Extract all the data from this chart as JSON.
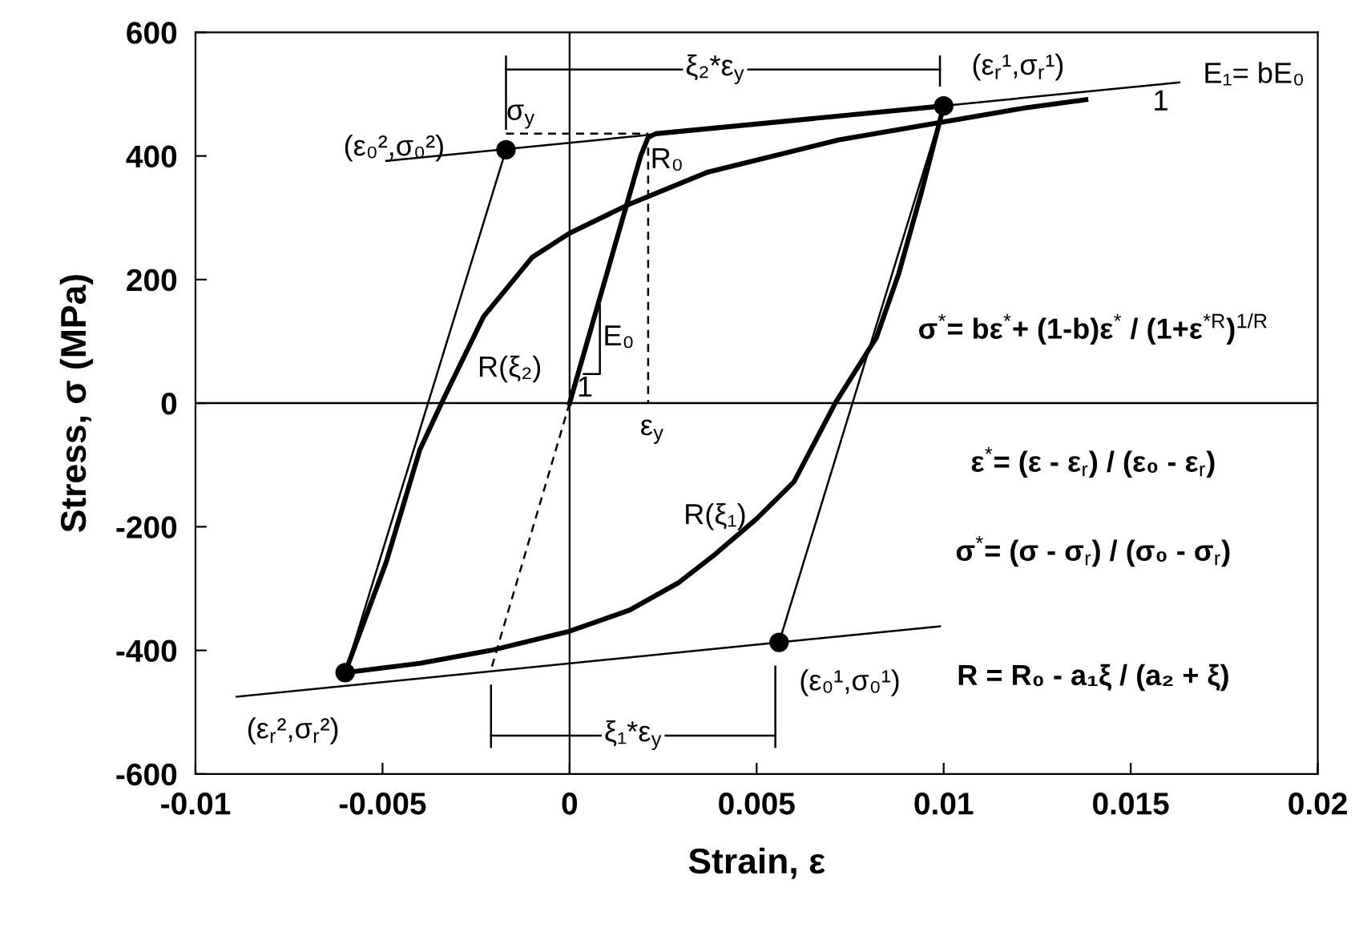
{
  "chart_data": {
    "type": "line",
    "xlabel": "Strain, ε",
    "ylabel": "Stress, σ (MPa)",
    "xlim": [
      -0.01,
      0.02
    ],
    "ylim": [
      -600,
      600
    ],
    "xticks": [
      -0.01,
      -0.005,
      0,
      0.005,
      0.01,
      0.015,
      0.02
    ],
    "yticks": [
      -600,
      -400,
      -200,
      0,
      200,
      400,
      600
    ],
    "grid": false,
    "legend": false,
    "ref_lines": [
      {
        "axis": "x",
        "value": 0,
        "color": "#000000"
      }
    ],
    "series": [
      {
        "type": "line",
        "color": "#000000",
        "x": [
          -0.01,
          0.02
        ],
        "values": [
          0,
          0
        ]
      },
      {
        "color": "#000000",
        "x": [
          0,
          0.0019,
          0.0021,
          0.0023,
          0.01
        ],
        "values": [
          0,
          400,
          430,
          436,
          481
        ]
      },
      {
        "color": "#000000",
        "x": [
          0.01,
          0.0094,
          0.0088,
          0.0082,
          0.0071,
          0.006,
          0.005,
          0.0039,
          0.0029,
          0.0016,
          0,
          -0.0021,
          -0.004,
          -0.006
        ],
        "values": [
          481,
          340,
          210,
          106,
          0,
          -127,
          -187,
          -244,
          -291,
          -335,
          -369,
          -400,
          -421,
          -436
        ]
      },
      {
        "color": "#000000",
        "x": [
          -0.006,
          -0.0049,
          -0.004,
          -0.0034,
          -0.0023,
          -0.001,
          0,
          0.0016,
          0.0037,
          0.0072,
          0.0122,
          0.0138
        ],
        "values": [
          -436,
          -257,
          -75,
          3,
          140,
          236,
          275,
          322,
          374,
          426,
          478,
          491
        ]
      },
      {
        "type": "line",
        "color": "#000000",
        "x": [
          -0.0049,
          0.0163
        ],
        "values": [
          392,
          519
        ]
      },
      {
        "type": "line",
        "color": "#000000",
        "x": [
          -0.0089,
          0.0099
        ],
        "values": [
          -475,
          -361
        ]
      },
      {
        "type": "line",
        "color": "#000000",
        "x": [
          -0.0017,
          -0.006
        ],
        "values": [
          410,
          -436
        ]
      },
      {
        "type": "line",
        "color": "#000000",
        "x": [
          0.01,
          0.0056
        ],
        "values": [
          481,
          -387
        ]
      },
      {
        "type": "line",
        "color": "#000000",
        "line_style": "dashed",
        "x": [
          0,
          -0.0021
        ],
        "values": [
          0,
          -431
        ]
      },
      {
        "type": "line",
        "color": "#000000",
        "line_style": "dashed",
        "x": [
          -0.0017,
          0.0021
        ],
        "values": [
          436,
          436
        ]
      },
      {
        "type": "line",
        "color": "#000000",
        "line_style": "dashed",
        "x": [
          0.0021,
          0.0021
        ],
        "values": [
          436,
          0
        ]
      },
      {
        "type": "line",
        "color": "#000000",
        "x": [
          0.00038,
          0.00081,
          0.00081
        ],
        "values": [
          47,
          47,
          158
        ]
      },
      {
        "type": "line",
        "color": "#000000",
        "x": [
          -0.0017,
          0.0099
        ],
        "values": [
          540,
          540
        ]
      },
      {
        "type": "line",
        "color": "#000000",
        "x": [
          -0.0017,
          -0.0017
        ],
        "values": [
          561,
          444
        ]
      },
      {
        "type": "line",
        "color": "#000000",
        "x": [
          0.0099,
          0.0099
        ],
        "values": [
          561,
          514
        ]
      },
      {
        "type": "line",
        "color": "#000000",
        "x": [
          -0.0021,
          0.0055
        ],
        "values": [
          -538,
          -538
        ]
      },
      {
        "type": "line",
        "color": "#000000",
        "x": [
          -0.0021,
          -0.0021
        ],
        "values": [
          -457,
          -556
        ]
      },
      {
        "type": "line",
        "color": "#000000",
        "x": [
          0.0055,
          0.0055
        ],
        "values": [
          -426,
          -556
        ]
      },
      {
        "type": "scatter",
        "color": "#000000",
        "marker": "circle",
        "x": [
          -0.0017,
          0.01,
          -0.006,
          0.0056
        ],
        "values": [
          410,
          481,
          -436,
          -387
        ]
      }
    ],
    "annotations": [
      "(ε₀²,σ₀²)",
      "σ$_{y}$",
      "R₀",
      "(ε$_{r}$¹,σ$_{r}$¹)",
      "E₁= bE₀",
      "1",
      "ξ₂*ε$_{y}$",
      "E₀",
      "1",
      "R(ξ₂)",
      "ε$_{y}$",
      "R(ξ₁)",
      "(ε₀¹,σ₀¹)",
      "(ε$_{r}$²,σ$_{r}$²)",
      "ξ₁*ε$_{y}$",
      "σ$^{*}$= bε$^{*}$+ (1-b)ε$^{*}$ / (1+ε$^{*R}$)$^{1/R}$",
      "ε$^{*}$= (ε - ε$_{r}$) / (ε₀ - ε$_{r}$)",
      "σ$^{*}$= (σ - σ$_{r}$) / (σ₀ - σ$_{r}$)",
      "R = R₀ - a₁ξ / (a₂ + ξ)"
    ]
  }
}
